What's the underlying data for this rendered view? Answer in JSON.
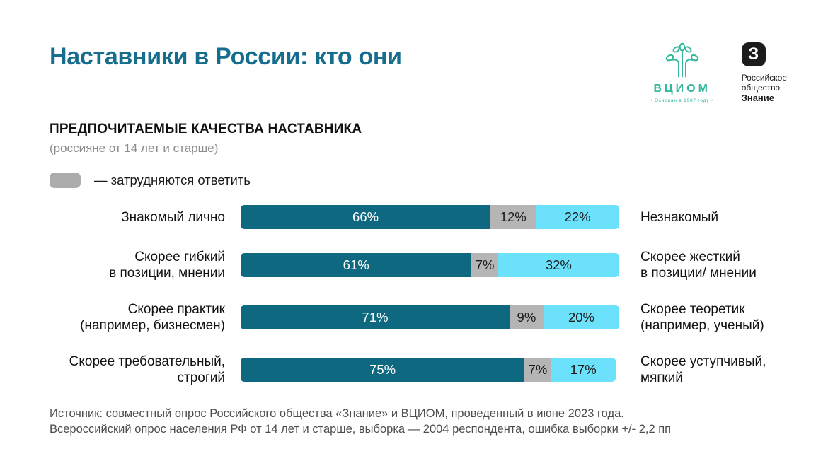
{
  "page": {
    "title": "Наставники в России: кто они"
  },
  "logos": {
    "vciom": {
      "name": "ВЦИОМ",
      "tagline": "•  Основан в 1987 году  •",
      "color": "#35b79e"
    },
    "znanie": {
      "letter": "З",
      "line1": "Российское",
      "line2": "общество",
      "line3": "Знание"
    }
  },
  "section": {
    "heading": "ПРЕДПОЧИТАЕМЫЕ КАЧЕСТВА НАСТАВНИКА",
    "subheading": "(россияне от 14 лет и старше)"
  },
  "legend": {
    "label": "— затрудняются ответить",
    "swatch_color": "#acacac",
    "applies_to_segment_index": 1
  },
  "chart_data": {
    "type": "bar",
    "orientation": "horizontal",
    "stacked": true,
    "unit": "%",
    "xlim": [
      0,
      100
    ],
    "title": "ПРЕДПОЧИТАЕМЫЕ КАЧЕСТВА НАСТАВНИКА",
    "subtitle": "(россияне от 14 лет и старше)",
    "legend_position": "top-left",
    "segment_colors": [
      "#0e687f",
      "#b5b5b5",
      "#6ce1fb"
    ],
    "rows": [
      {
        "left_label": "Знакомый лично",
        "right_label": "Незнакомый",
        "values": [
          66,
          12,
          22
        ]
      },
      {
        "left_label": "Скорее гибкий\nв позиции, мнении",
        "right_label": "Скорее жесткий\nв позиции/ мнении",
        "values": [
          61,
          7,
          32
        ]
      },
      {
        "left_label": "Скорее практик\n(например, бизнесмен)",
        "right_label": "Скорее теоретик\n(например, ученый)",
        "values": [
          71,
          9,
          20
        ]
      },
      {
        "left_label": "Скорее требовательный,\nстрогий",
        "right_label": "Скорее уступчивый,\nмягкий",
        "values": [
          75,
          7,
          17
        ]
      }
    ]
  },
  "source": {
    "line1": "Источник: совместный опрос Российского общества «Знание» и ВЦИОМ, проведенный в июне 2023 года.",
    "line2": "Всероссийский опрос населения РФ от 14 лет и старше, выборка — 2004 респондента, ошибка выборки +/- 2,2 пп"
  }
}
